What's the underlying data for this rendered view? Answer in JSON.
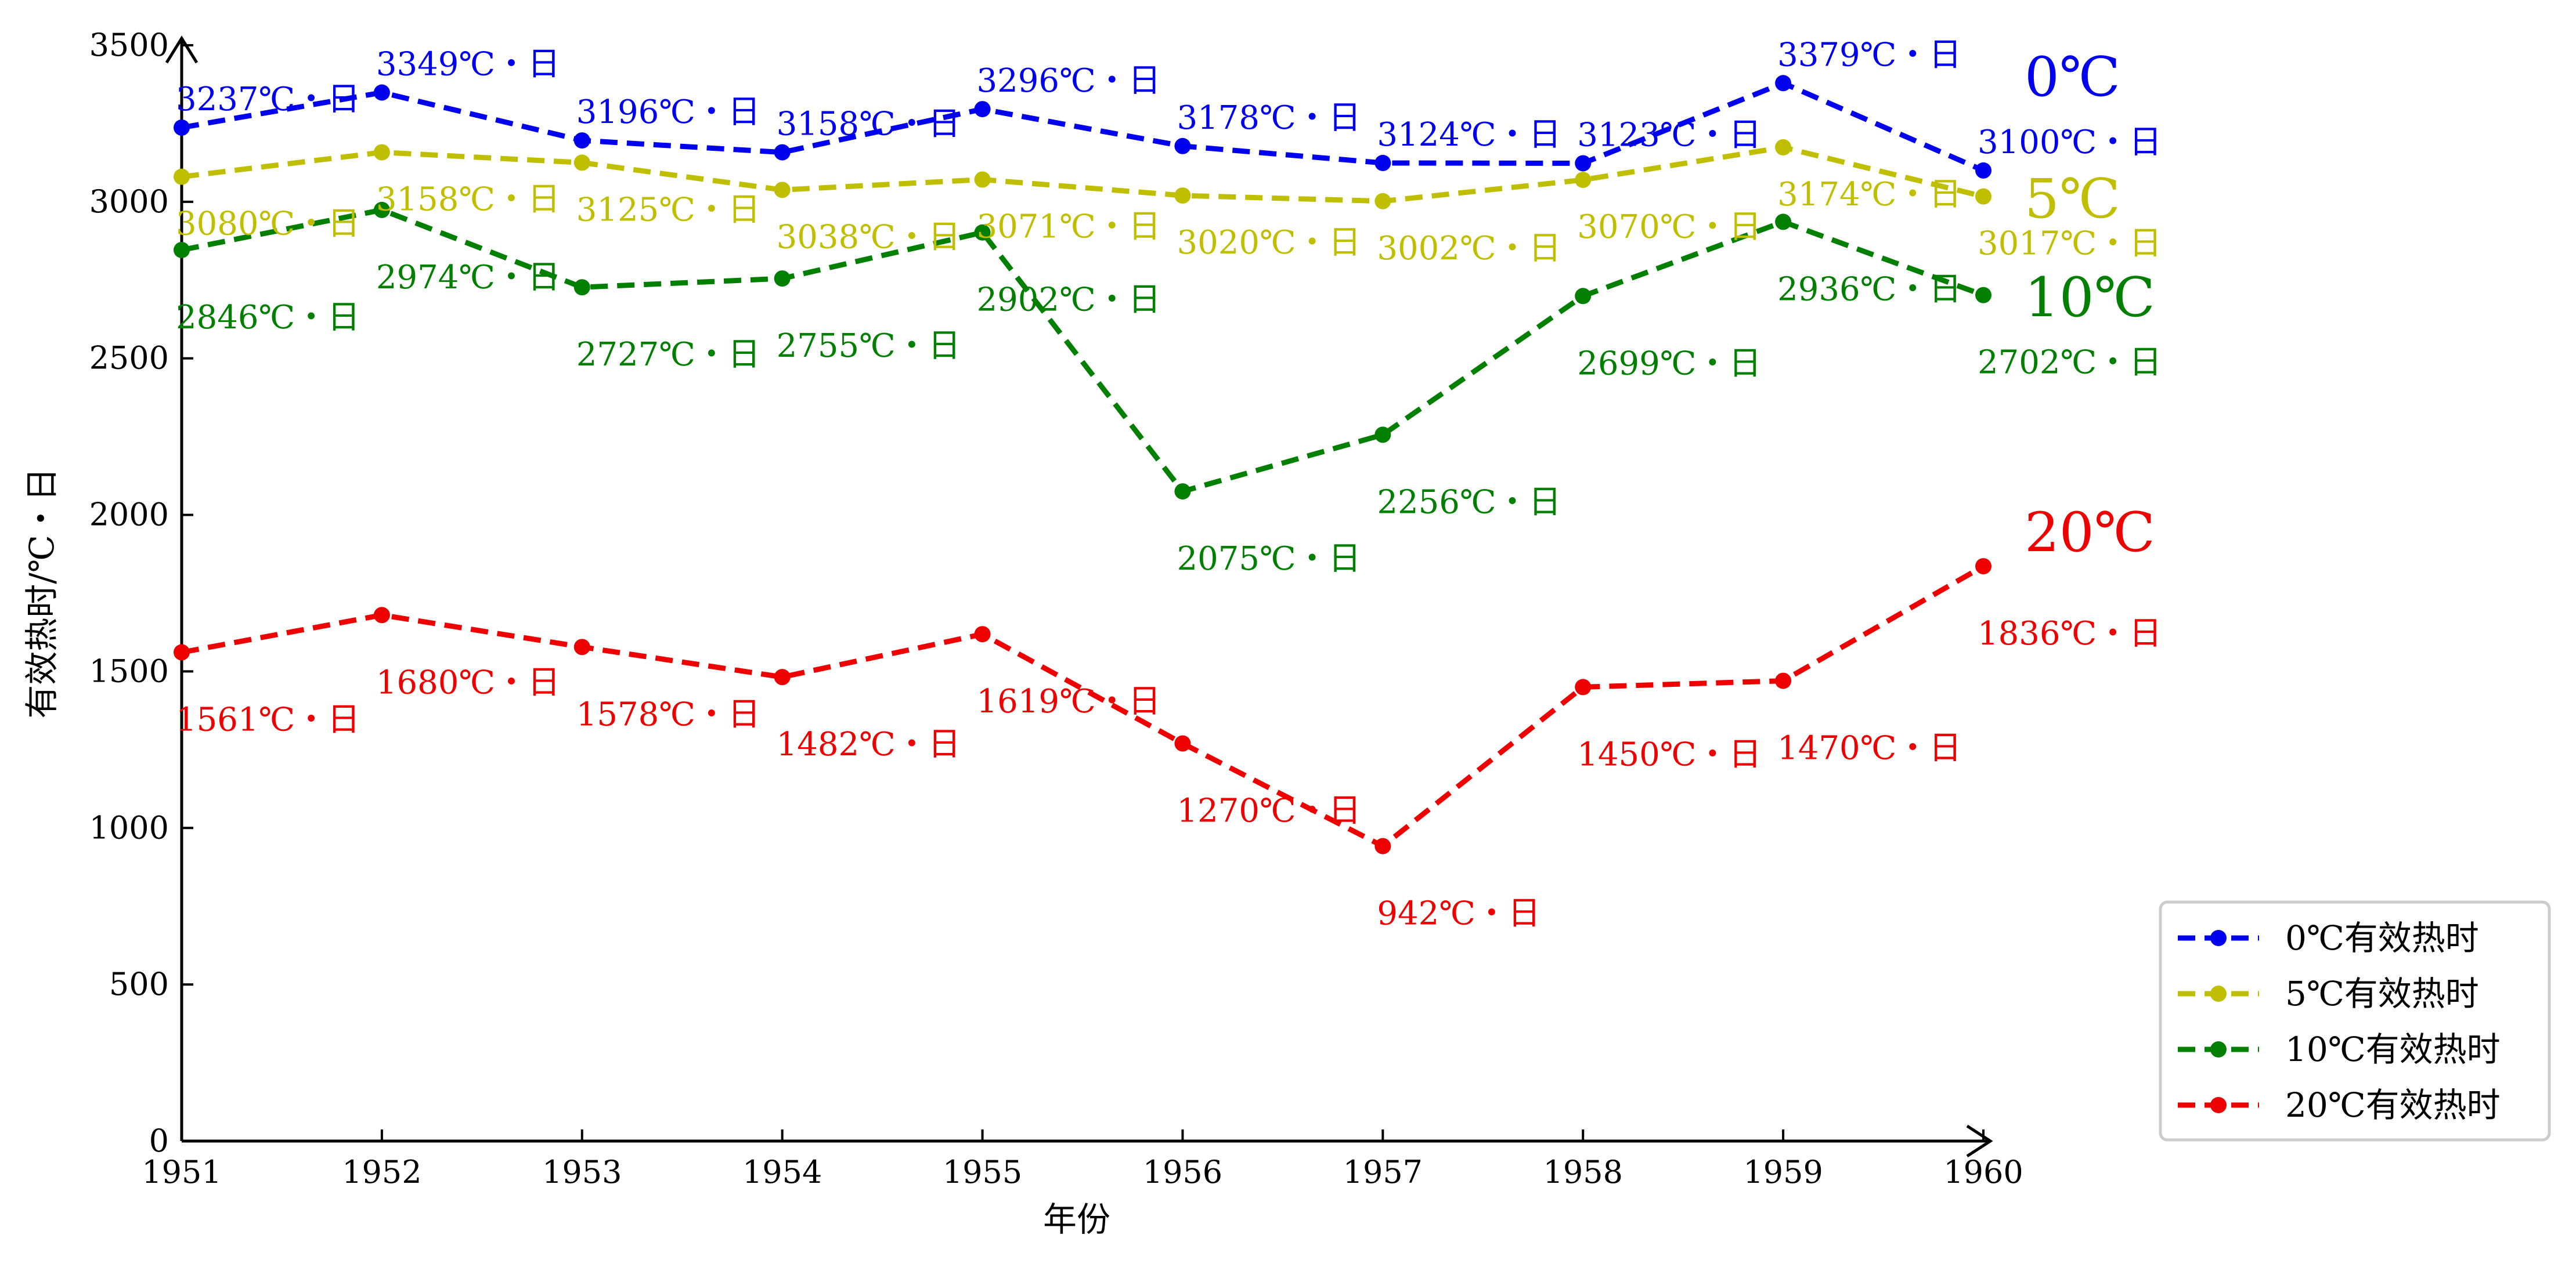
{
  "chart_data": {
    "type": "line",
    "title": "",
    "xlabel": "年份",
    "ylabel": "有效热时/℃・日",
    "xlim": [
      1951,
      1960
    ],
    "ylim": [
      0,
      3500
    ],
    "x": [
      1951,
      1952,
      1953,
      1954,
      1955,
      1956,
      1957,
      1958,
      1959,
      1960
    ],
    "x_ticks": [
      "1951",
      "1952",
      "1953",
      "1954",
      "1955",
      "1956",
      "1957",
      "1958",
      "1959",
      "1960"
    ],
    "y_ticks": [
      0,
      500,
      1000,
      1500,
      2000,
      2500,
      3000,
      3500
    ],
    "grid": false,
    "legend_position": "bottom-right",
    "series": [
      {
        "name": "0℃有效热时",
        "end_label": "0℃",
        "color": "#0000ee",
        "line_style": "dashed",
        "marker": "circle",
        "values": [
          3237,
          3349,
          3196,
          3158,
          3296,
          3178,
          3124,
          3123,
          3379,
          3100
        ],
        "point_labels": [
          "3237℃・日",
          "3349℃・日",
          "3196℃・日",
          "3158℃・日",
          "3296℃・日",
          "3178℃・日",
          "3124℃・日",
          "3123℃・日",
          "3379℃・日",
          "3100℃・日"
        ]
      },
      {
        "name": "5℃有效热时",
        "end_label": "5℃",
        "color": "#bfbf00",
        "line_style": "dashed",
        "marker": "circle",
        "values": [
          3080,
          3158,
          3125,
          3038,
          3071,
          3020,
          3002,
          3070,
          3174,
          3017
        ],
        "point_labels": [
          "3080℃・日",
          "3158℃・日",
          "3125℃・日",
          "3038℃・日",
          "3071℃・日",
          "3020℃・日",
          "3002℃・日",
          "3070℃・日",
          "3174℃・日",
          "3017℃・日"
        ]
      },
      {
        "name": "10℃有效热时",
        "end_label": "10℃",
        "color": "#007f00",
        "line_style": "dashed",
        "marker": "circle",
        "values": [
          2846,
          2974,
          2727,
          2755,
          2902,
          2075,
          2256,
          2699,
          2936,
          2702
        ],
        "point_labels": [
          "2846℃・日",
          "2974℃・日",
          "2727℃・日",
          "2755℃・日",
          "2902℃・日",
          "2075℃・日",
          "2256℃・日",
          "2699℃・日",
          "2936℃・日",
          "2702℃・日"
        ]
      },
      {
        "name": "20℃有效热时",
        "end_label": "20℃",
        "color": "#ee0000",
        "line_style": "dashed",
        "marker": "circle",
        "values": [
          1561,
          1680,
          1578,
          1482,
          1619,
          1270,
          942,
          1450,
          1470,
          1836
        ],
        "point_labels": [
          "1561℃・日",
          "1680℃・日",
          "1578℃・日",
          "1482℃・日",
          "1619℃・日",
          "1270℃・日",
          "942℃・日",
          "1450℃・日",
          "1470℃・日",
          "1836℃・日"
        ]
      }
    ]
  }
}
